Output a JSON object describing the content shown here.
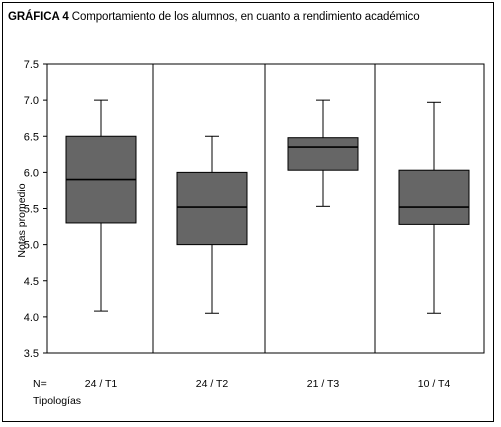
{
  "title": {
    "lead": "GRÁFICA 4",
    "text": "Comportamiento de los alumnos, en cuanto a rendimiento académico"
  },
  "chart_data": {
    "type": "boxplot",
    "ylabel": "Notas promedio",
    "xlabel": "Tipologías",
    "n_label": "N=",
    "ylim": [
      3.5,
      7.5
    ],
    "yticks": [
      "3.5",
      "4.0",
      "4.5",
      "5.0",
      "5.5",
      "6.0",
      "6.5",
      "7.0",
      "7.5"
    ],
    "categories": [
      "24 / T1",
      "24 / T2",
      "21 / T3",
      "10 / T4"
    ],
    "boxes": [
      {
        "min": 4.08,
        "q1": 5.3,
        "median": 5.9,
        "q3": 6.5,
        "max": 7.0
      },
      {
        "min": 4.05,
        "q1": 5.0,
        "median": 5.52,
        "q3": 6.0,
        "max": 6.5
      },
      {
        "min": 5.53,
        "q1": 6.03,
        "median": 6.35,
        "q3": 6.48,
        "max": 7.0
      },
      {
        "min": 4.05,
        "q1": 5.28,
        "median": 5.52,
        "q3": 6.03,
        "max": 6.97
      }
    ],
    "box_color": "#666666",
    "grid": false
  }
}
